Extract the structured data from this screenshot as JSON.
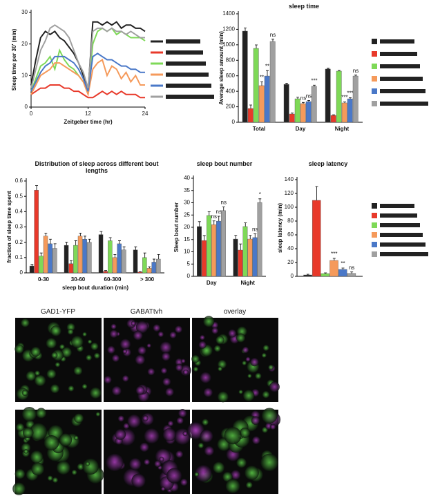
{
  "chart_data": [
    {
      "type": "line",
      "ylabel": "Sleep time per 30' (min)",
      "xlabel": "Zeitgeber time (hr)",
      "x": [
        0,
        1,
        2,
        3,
        4,
        5,
        6,
        7,
        8,
        9,
        10,
        11,
        12,
        13,
        14,
        15,
        16,
        17,
        18,
        19,
        20,
        21,
        22,
        23,
        24
      ],
      "xlim": [
        0,
        24
      ],
      "xticks": [
        0,
        12,
        24
      ],
      "ylim": [
        0,
        30
      ],
      "yticks": [
        0,
        10,
        20,
        30
      ],
      "series": [
        {
          "color": "#222222",
          "values": [
            7,
            15,
            22,
            24,
            23,
            24,
            22,
            21,
            19,
            17,
            14,
            10,
            5,
            27,
            27,
            26,
            27,
            26,
            27,
            25,
            26,
            26,
            25,
            25,
            24
          ]
        },
        {
          "color": "#e8392a",
          "values": [
            4,
            5,
            6,
            6,
            7,
            7,
            7,
            6,
            6,
            5,
            5,
            4,
            3,
            3,
            4,
            5,
            4,
            5,
            4,
            5,
            4,
            4,
            4,
            3,
            3
          ]
        },
        {
          "color": "#7ed957",
          "values": [
            5,
            9,
            13,
            14,
            16,
            12,
            18,
            15,
            13,
            12,
            10,
            8,
            5,
            20,
            24,
            25,
            24,
            25,
            23,
            24,
            23,
            22,
            22,
            22,
            21
          ]
        },
        {
          "color": "#f59a5b",
          "values": [
            4,
            7,
            10,
            11,
            12,
            14,
            14,
            13,
            12,
            11,
            10,
            8,
            4,
            12,
            14,
            15,
            10,
            13,
            12,
            9,
            11,
            8,
            10,
            7,
            7
          ]
        },
        {
          "color": "#4a78c8",
          "values": [
            5,
            8,
            11,
            13,
            14,
            16,
            16,
            16,
            15,
            14,
            12,
            9,
            5,
            16,
            17,
            16,
            15,
            15,
            14,
            13,
            13,
            12,
            12,
            11,
            11
          ]
        },
        {
          "color": "#a0a0a0",
          "values": [
            6,
            12,
            18,
            21,
            25,
            26,
            25,
            24,
            22,
            18,
            14,
            11,
            6,
            24,
            25,
            25,
            24,
            25,
            24,
            24,
            23,
            24,
            23,
            22,
            22
          ]
        }
      ]
    },
    {
      "type": "bar",
      "title": "sleep time",
      "ylabel": "Average sleep amount (min)",
      "categories": [
        "Total",
        "Day",
        "Night"
      ],
      "ylim": [
        0,
        1400
      ],
      "yticks": [
        0,
        200,
        400,
        600,
        800,
        1000,
        1200,
        1400
      ],
      "series": [
        {
          "color": "#222222",
          "values": [
            1177,
            490,
            687
          ],
          "errors": [
            40,
            15,
            10
          ]
        },
        {
          "color": "#e8392a",
          "values": [
            178,
            107,
            89
          ],
          "errors": [
            45,
            12,
            8
          ]
        },
        {
          "color": "#7ed957",
          "values": [
            954,
            303,
            660
          ],
          "errors": [
            45,
            20,
            10
          ]
        },
        {
          "color": "#f59a5b",
          "values": [
            473,
            241,
            250
          ],
          "errors": [
            50,
            15,
            12
          ],
          "sig": [
            "**",
            "ns",
            "***"
          ]
        },
        {
          "color": "#4a78c8",
          "values": [
            597,
            267,
            303
          ],
          "errors": [
            70,
            15,
            15
          ],
          "sig": [
            "**",
            "ns",
            "***"
          ]
        },
        {
          "color": "#a0a0a0",
          "values": [
            1043,
            464,
            597
          ],
          "errors": [
            30,
            15,
            12
          ],
          "sig": [
            "ns",
            "***",
            "ns"
          ]
        }
      ]
    },
    {
      "type": "bar",
      "title": "Distribution of sleep across different bout lengths",
      "ylabel": "fraction of sleep time spent",
      "xlabel": "sleep bout duration (min)",
      "categories": [
        "0-30",
        "30-60",
        "60-300",
        "> 300"
      ],
      "ylim": [
        0,
        0.6
      ],
      "yticks": [
        0,
        0.1,
        0.2,
        0.3,
        0.4,
        0.5,
        0.6
      ],
      "series": [
        {
          "color": "#222222",
          "values": [
            0.045,
            0.18,
            0.25,
            0.15
          ],
          "errors": [
            0.01,
            0.02,
            0.02,
            0.02
          ]
        },
        {
          "color": "#e8392a",
          "values": [
            0.54,
            0.06,
            0.01,
            0.005
          ],
          "errors": [
            0.03,
            0.02,
            0.005,
            0.003
          ]
        },
        {
          "color": "#7ed957",
          "values": [
            0.11,
            0.18,
            0.21,
            0.1
          ],
          "errors": [
            0.02,
            0.03,
            0.02,
            0.03
          ]
        },
        {
          "color": "#f59a5b",
          "values": [
            0.24,
            0.24,
            0.1,
            0.03
          ],
          "errors": [
            0.02,
            0.02,
            0.02,
            0.01
          ]
        },
        {
          "color": "#4a78c8",
          "values": [
            0.19,
            0.22,
            0.19,
            0.07
          ],
          "errors": [
            0.03,
            0.02,
            0.02,
            0.02
          ]
        },
        {
          "color": "#a0a0a0",
          "values": [
            0.16,
            0.2,
            0.15,
            0.09
          ],
          "errors": [
            0.03,
            0.02,
            0.02,
            0.03
          ]
        }
      ]
    },
    {
      "type": "bar",
      "title": "sleep bout number",
      "ylabel": "Sleep bout number",
      "categories": [
        "Day",
        "Night"
      ],
      "ylim": [
        0,
        40
      ],
      "yticks": [
        0,
        5,
        10,
        15,
        20,
        25,
        30,
        35,
        40
      ],
      "series": [
        {
          "color": "#222222",
          "values": [
            20.3,
            15.2
          ],
          "errors": [
            2,
            1.5
          ]
        },
        {
          "color": "#e8392a",
          "values": [
            14.6,
            10.7
          ],
          "errors": [
            2,
            2.5
          ]
        },
        {
          "color": "#7ed957",
          "values": [
            24.8,
            20.3
          ],
          "errors": [
            1.5,
            1.5
          ]
        },
        {
          "color": "#f59a5b",
          "values": [
            21.1,
            15.2
          ],
          "errors": [
            1.5,
            1.5
          ],
          "sig": [
            "ns",
            null
          ]
        },
        {
          "color": "#4a78c8",
          "values": [
            22.5,
            15.8
          ],
          "errors": [
            2,
            1.5
          ],
          "sig": [
            "ns",
            "ns"
          ]
        },
        {
          "color": "#a0a0a0",
          "values": [
            26.8,
            30.1
          ],
          "errors": [
            1.5,
            1.5
          ],
          "sig": [
            "ns",
            "*"
          ]
        }
      ]
    },
    {
      "type": "bar",
      "title": "sleep latency",
      "ylabel": "sleep latency (min)",
      "categories": [
        null
      ],
      "ylim": [
        0,
        140
      ],
      "yticks": [
        0,
        20,
        40,
        60,
        80,
        100,
        120,
        140
      ],
      "series": [
        {
          "color": "#222222",
          "values": [
            2
          ],
          "errors": [
            1
          ]
        },
        {
          "color": "#e8392a",
          "values": [
            110
          ],
          "errors": [
            20
          ]
        },
        {
          "color": "#7ed957",
          "values": [
            4
          ],
          "errors": [
            1
          ]
        },
        {
          "color": "#f59a5b",
          "values": [
            23
          ],
          "errors": [
            3
          ],
          "sig": [
            "***"
          ]
        },
        {
          "color": "#4a78c8",
          "values": [
            10
          ],
          "errors": [
            2
          ],
          "sig": [
            "**"
          ]
        },
        {
          "color": "#a0a0a0",
          "values": [
            4.3
          ],
          "errors": [
            2
          ],
          "sig": [
            "ns"
          ]
        }
      ]
    }
  ],
  "images": {
    "headers": [
      "GAD1-YFP",
      "GABATtvh",
      "overlay"
    ]
  }
}
